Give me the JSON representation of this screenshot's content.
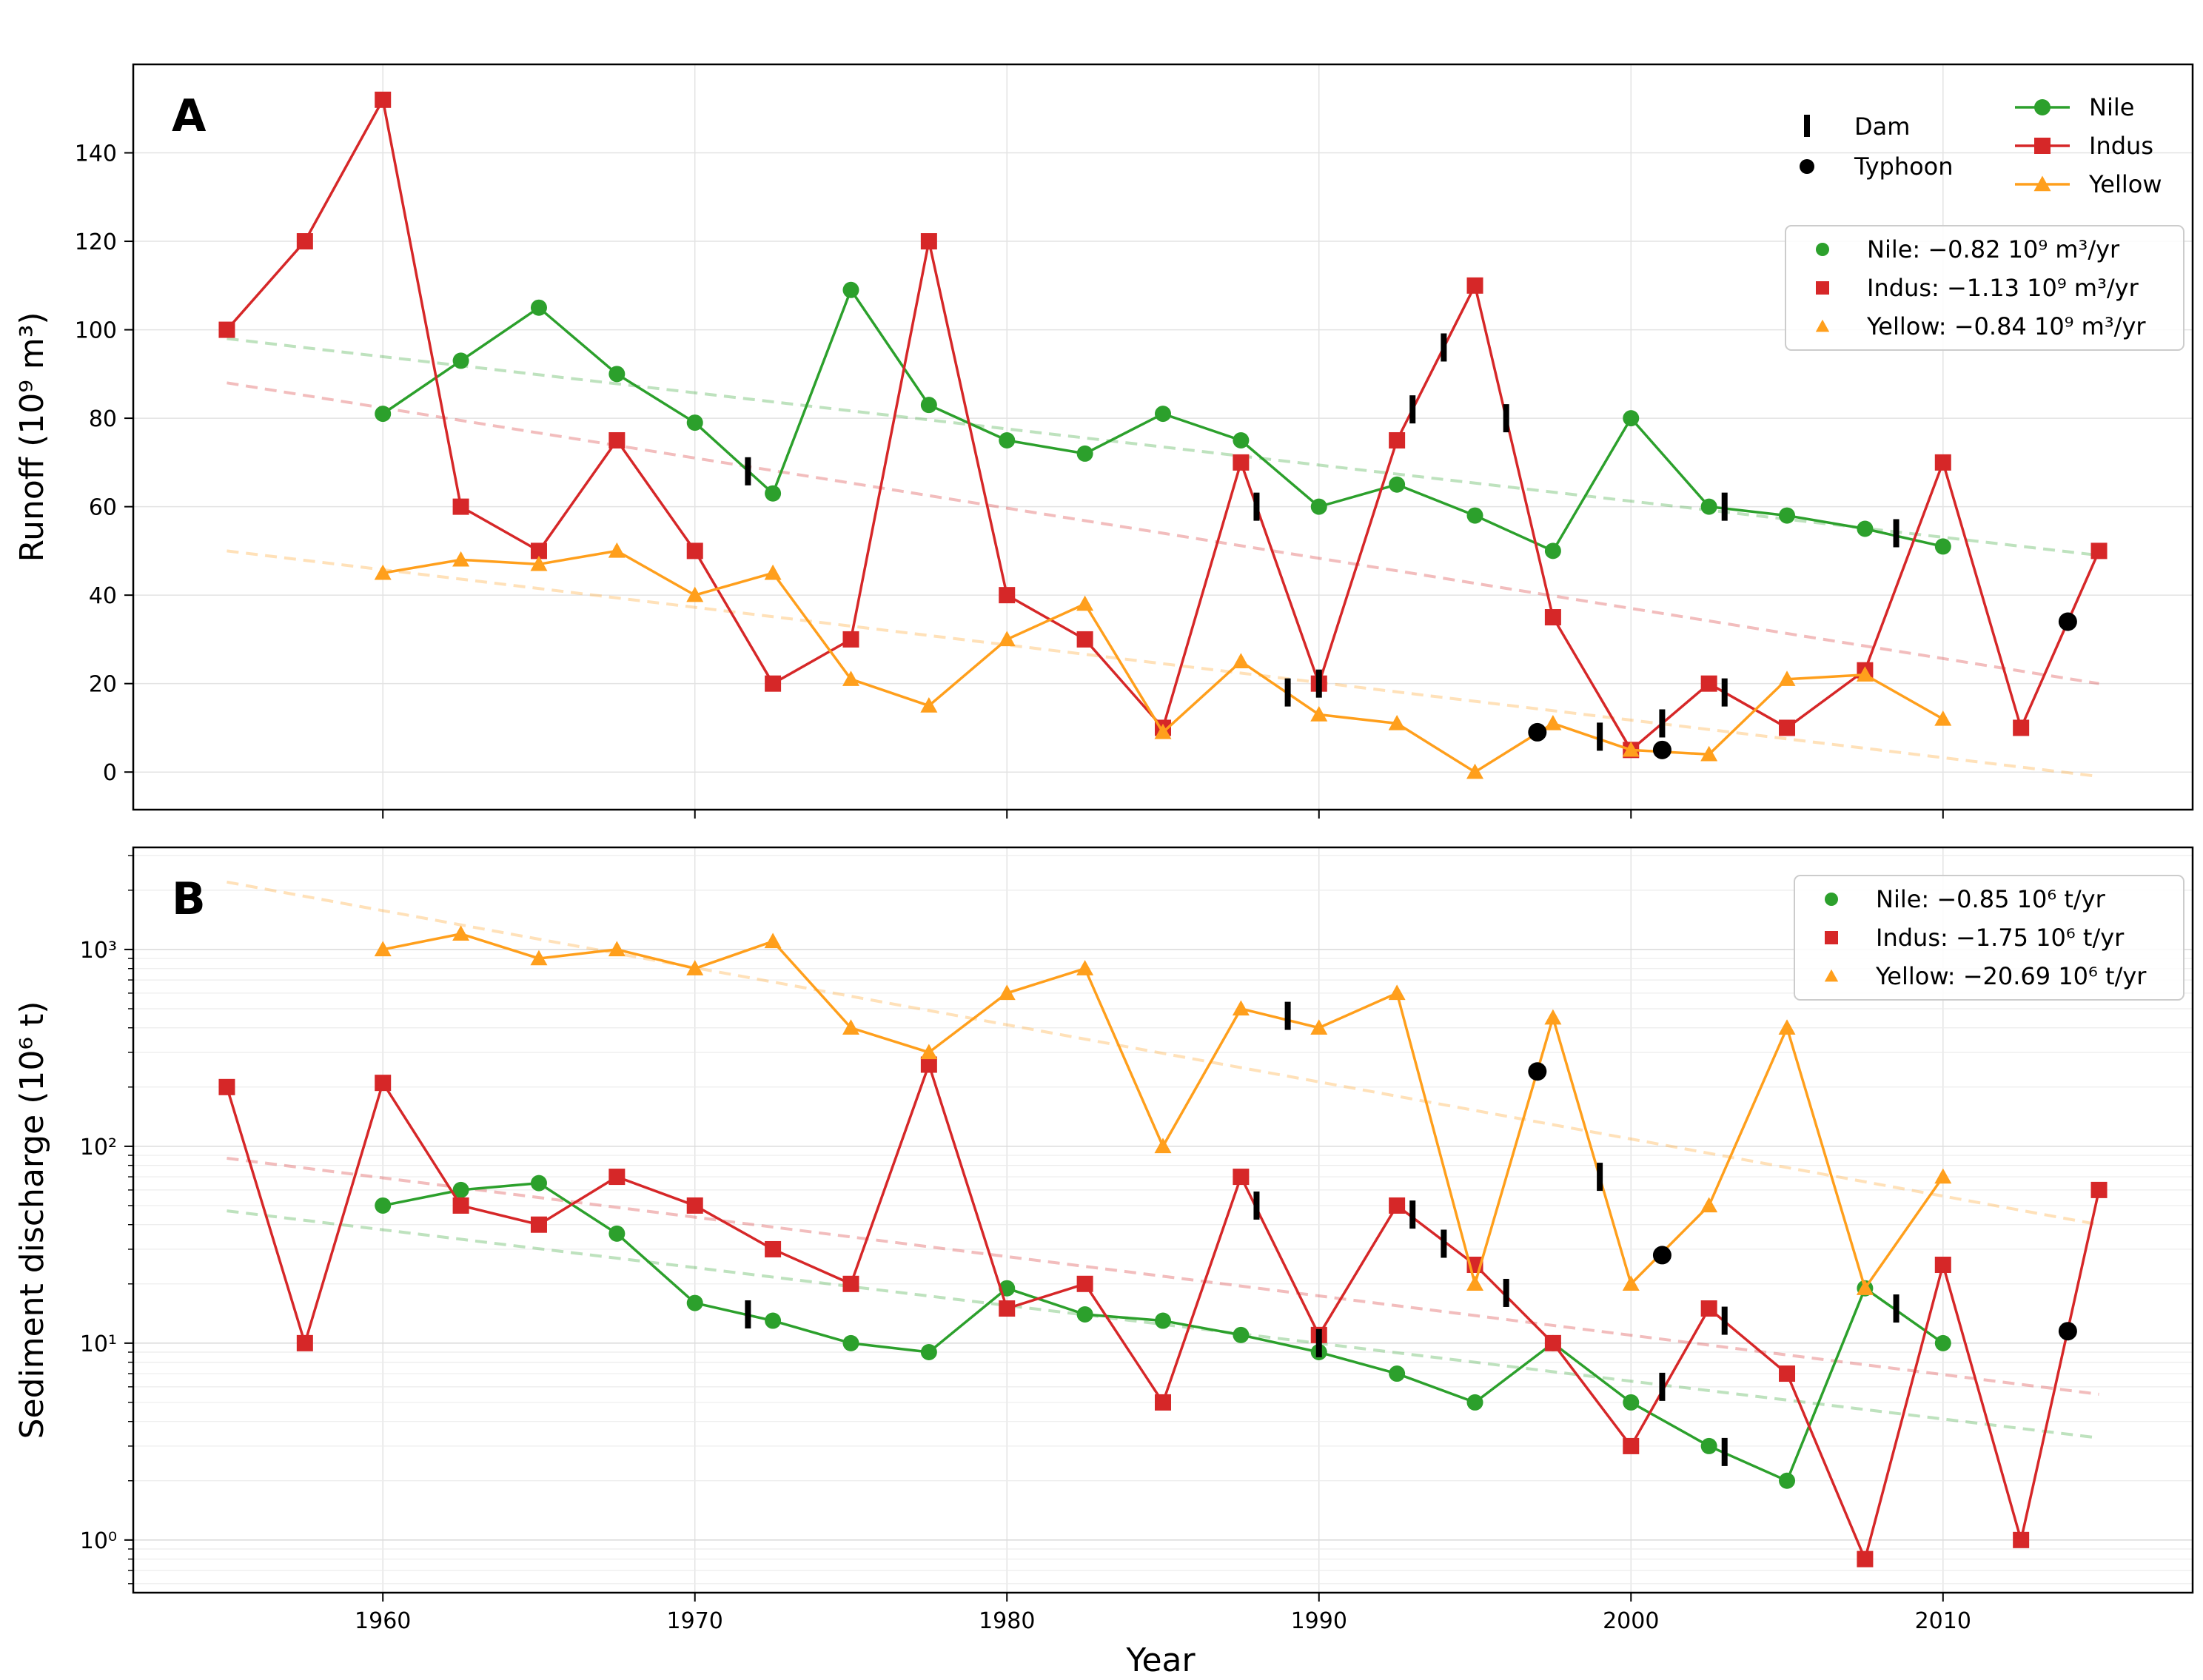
{
  "colors": {
    "Nile": "#2ca02c",
    "Indus": "#d62728",
    "Yellow": "#ff9f1c",
    "event": "#000000"
  },
  "chart_data": [
    {
      "type": "line",
      "panel": "A",
      "ylabel": "Runoff (10⁹ m³)",
      "xlabel": "",
      "xlim": [
        1952,
        2018
      ],
      "ylim": [
        -8.5,
        160
      ],
      "yscale": "linear",
      "yticks": [
        0,
        20,
        40,
        60,
        80,
        100,
        120,
        140
      ],
      "ytick_labels": [
        "0",
        "20",
        "40",
        "60",
        "80",
        "100",
        "120",
        "140"
      ],
      "xticks": [
        1960,
        1970,
        1980,
        1990,
        2000,
        2010
      ],
      "series": [
        {
          "name": "Nile",
          "marker": "circle",
          "x": [
            1960,
            1962.5,
            1965,
            1967.5,
            1970,
            1972.5,
            1975,
            1977.5,
            1980,
            1982.5,
            1985,
            1987.5,
            1990,
            1992.5,
            1995,
            1997.5,
            2000,
            2002.5,
            2005,
            2007.5,
            2010
          ],
          "y": [
            81,
            93,
            105,
            90,
            79,
            63,
            109,
            83,
            75,
            72,
            81,
            75,
            60,
            65,
            58,
            50,
            80,
            60,
            58,
            55,
            51
          ]
        },
        {
          "name": "Indus",
          "marker": "square",
          "x": [
            1955,
            1957.5,
            1960,
            1962.5,
            1965,
            1967.5,
            1970,
            1972.5,
            1975,
            1977.5,
            1980,
            1982.5,
            1985,
            1987.5,
            1990,
            1992.5,
            1995,
            1997.5,
            2000,
            2002.5,
            2005,
            2007.5,
            2010,
            2012.5,
            2015
          ],
          "y": [
            100,
            120,
            152,
            60,
            50,
            75,
            50,
            20,
            30,
            120,
            40,
            30,
            10,
            70,
            20,
            75,
            110,
            35,
            5,
            20,
            10,
            23,
            70,
            10,
            50
          ]
        },
        {
          "name": "Yellow",
          "marker": "triangle",
          "x": [
            1960,
            1962.5,
            1965,
            1967.5,
            1970,
            1972.5,
            1975,
            1977.5,
            1980,
            1982.5,
            1985,
            1987.5,
            1990,
            1992.5,
            1995,
            1997.5,
            2000,
            2002.5,
            2005,
            2007.5,
            2010
          ],
          "y": [
            45,
            48,
            47,
            50,
            40,
            45,
            21,
            15,
            30,
            38,
            9,
            25,
            13,
            11,
            0,
            11,
            5,
            4,
            21,
            22,
            12
          ]
        }
      ],
      "trends": [
        {
          "name": "Nile",
          "x": [
            1955,
            2015
          ],
          "y": [
            98,
            49
          ]
        },
        {
          "name": "Indus",
          "x": [
            1955,
            2015
          ],
          "y": [
            88,
            20
          ]
        },
        {
          "name": "Yellow",
          "x": [
            1955,
            2015
          ],
          "y": [
            50,
            -1
          ]
        }
      ],
      "dams": [
        {
          "x": 1971.7,
          "y": 68
        },
        {
          "x": 1988.0,
          "y": 60
        },
        {
          "x": 1989.0,
          "y": 18
        },
        {
          "x": 1990.0,
          "y": 20
        },
        {
          "x": 1993.0,
          "y": 82
        },
        {
          "x": 1994.0,
          "y": 96
        },
        {
          "x": 1996.0,
          "y": 80
        },
        {
          "x": 1999.0,
          "y": 8
        },
        {
          "x": 2001.0,
          "y": 11
        },
        {
          "x": 2003.0,
          "y": 60
        },
        {
          "x": 2003.0,
          "y": 18
        },
        {
          "x": 2008.5,
          "y": 54
        }
      ],
      "typhoons": [
        {
          "x": 1997.0,
          "y": 9
        },
        {
          "x": 2001.0,
          "y": 5
        },
        {
          "x": 2014.0,
          "y": 34
        }
      ],
      "trend_legend": [
        {
          "name": "Nile",
          "label": "Nile: −0.82 10⁹ m³/yr"
        },
        {
          "name": "Indus",
          "label": "Indus: −1.13 10⁹ m³/yr"
        },
        {
          "name": "Yellow",
          "label": "Yellow: −0.84 10⁹ m³/yr"
        }
      ],
      "event_legend": {
        "dam": "Dam",
        "typhoon": "Typhoon"
      },
      "series_legend": [
        "Nile",
        "Indus",
        "Yellow"
      ],
      "legend_position": "top-right"
    },
    {
      "type": "line",
      "panel": "B",
      "ylabel": "Sediment discharge (10⁶ t)",
      "xlabel": "Year",
      "xlim": [
        1952,
        2018
      ],
      "ylim": [
        0.54,
        3300
      ],
      "yscale": "log",
      "yticks": [
        1,
        10,
        100,
        1000
      ],
      "ytick_labels": [
        "10⁰",
        "10¹",
        "10²",
        "10³"
      ],
      "xticks": [
        1960,
        1970,
        1980,
        1990,
        2000,
        2010
      ],
      "xtick_labels": [
        "1960",
        "1970",
        "1980",
        "1990",
        "2000",
        "2010"
      ],
      "series": [
        {
          "name": "Nile",
          "marker": "circle",
          "x": [
            1960,
            1962.5,
            1965,
            1967.5,
            1970,
            1972.5,
            1975,
            1977.5,
            1980,
            1982.5,
            1985,
            1987.5,
            1990,
            1992.5,
            1995,
            1997.5,
            2000,
            2002.5,
            2005,
            2007.5,
            2010
          ],
          "y": [
            50,
            60,
            65,
            36,
            16,
            13,
            10,
            9,
            19,
            14,
            13,
            11,
            9,
            7,
            5,
            10,
            5,
            3,
            2,
            19,
            10
          ]
        },
        {
          "name": "Indus",
          "marker": "square",
          "x": [
            1955,
            1957.5,
            1960,
            1962.5,
            1965,
            1967.5,
            1970,
            1972.5,
            1975,
            1977.5,
            1980,
            1982.5,
            1985,
            1987.5,
            1990,
            1992.5,
            1995,
            1997.5,
            2000,
            2002.5,
            2005,
            2007.5,
            2010,
            2012.5,
            2015
          ],
          "y": [
            200,
            10,
            210,
            50,
            40,
            70,
            50,
            30,
            20,
            260,
            15,
            20,
            5,
            70,
            11,
            50,
            25,
            10,
            3,
            15,
            7,
            0.8,
            25,
            1,
            60
          ]
        },
        {
          "name": "Yellow",
          "marker": "triangle",
          "x": [
            1960,
            1962.5,
            1965,
            1967.5,
            1970,
            1972.5,
            1975,
            1977.5,
            1980,
            1982.5,
            1985,
            1987.5,
            1990,
            1992.5,
            1995,
            1997.5,
            2000,
            2002.5,
            2005,
            2007.5,
            2010
          ],
          "y": [
            1000,
            1200,
            900,
            1000,
            800,
            1100,
            400,
            300,
            600,
            800,
            100,
            500,
            400,
            600,
            20,
            450,
            20,
            50,
            400,
            19,
            70
          ]
        }
      ],
      "trends": [
        {
          "name": "Nile",
          "x": [
            1955,
            2015
          ],
          "y": [
            47,
            3.3
          ]
        },
        {
          "name": "Indus",
          "x": [
            1955,
            2015
          ],
          "y": [
            87,
            5.5
          ]
        },
        {
          "name": "Yellow",
          "x": [
            1955,
            2015
          ],
          "y": [
            2200,
            40
          ]
        }
      ],
      "dams": [
        {
          "x": 1971.7,
          "y": 14
        },
        {
          "x": 1988.0,
          "y": 50
        },
        {
          "x": 1989.0,
          "y": 460
        },
        {
          "x": 1990.0,
          "y": 10
        },
        {
          "x": 1993.0,
          "y": 45
        },
        {
          "x": 1994.0,
          "y": 32
        },
        {
          "x": 1996.0,
          "y": 18
        },
        {
          "x": 1999.0,
          "y": 70
        },
        {
          "x": 2001.0,
          "y": 6
        },
        {
          "x": 2003.0,
          "y": 13
        },
        {
          "x": 2003.0,
          "y": 2.8
        },
        {
          "x": 2008.5,
          "y": 15
        }
      ],
      "typhoons": [
        {
          "x": 1997.0,
          "y": 240
        },
        {
          "x": 2001.0,
          "y": 28
        },
        {
          "x": 2014.0,
          "y": 11.5
        }
      ],
      "trend_legend": [
        {
          "name": "Nile",
          "label": "Nile: −0.85 10⁶ t/yr"
        },
        {
          "name": "Indus",
          "label": "Indus: −1.75 10⁶ t/yr"
        },
        {
          "name": "Yellow",
          "label": "Yellow: −20.69 10⁶ t/yr"
        }
      ],
      "legend_position": "top-right"
    }
  ]
}
